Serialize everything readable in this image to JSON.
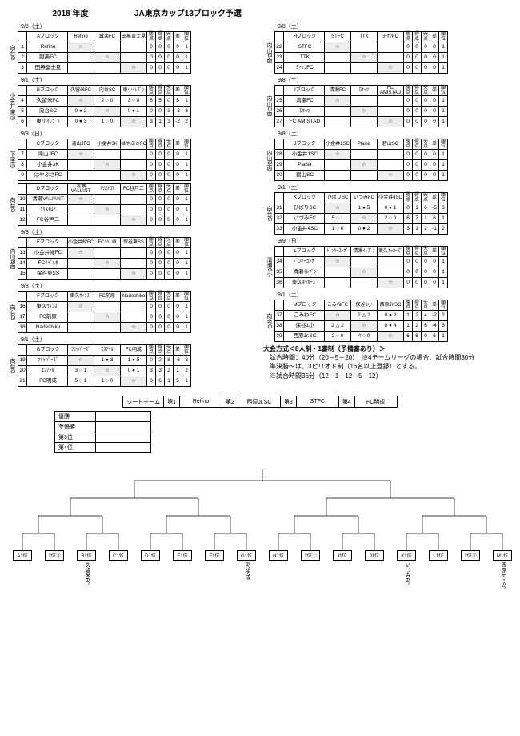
{
  "header": {
    "year": "2018 年度",
    "title": "JA東京カップ13ブロック予選"
  },
  "stat_hdr": [
    "勝点",
    "得点",
    "失点",
    "差",
    "順位"
  ],
  "left_groups": [
    {
      "date": "9/8（土）",
      "venue": "向台G",
      "name": "Aブロック",
      "opponents": [
        "Refino",
        "蹴楽FC",
        "田無富士見"
      ],
      "rows": [
        {
          "no": "1",
          "team": "Refino",
          "cells": [
            "☆",
            "",
            ""
          ],
          "stats": [
            "0",
            "0",
            "0",
            "0",
            "1"
          ]
        },
        {
          "no": "2",
          "team": "蹴楽FC",
          "cells": [
            "",
            "☆",
            ""
          ],
          "stats": [
            "0",
            "0",
            "0",
            "0",
            "1"
          ]
        },
        {
          "no": "3",
          "team": "田無富士見",
          "cells": [
            "",
            "",
            "☆"
          ],
          "stats": [
            "0",
            "0",
            "0",
            "0",
            "1"
          ]
        }
      ]
    },
    {
      "date": "9/1（土）",
      "venue": "小金井東小",
      "name": "Bブロック",
      "opponents": [
        "久留米FC",
        "向台SC",
        "東小ｲﾚﾌﾞﾝ"
      ],
      "rows": [
        {
          "no": "4",
          "team": "久留米FC",
          "cells": [
            "☆",
            "2 ○ 0",
            "3 ○ 0"
          ],
          "stats": [
            "6",
            "5",
            "0",
            "5",
            "1"
          ]
        },
        {
          "no": "5",
          "team": "向台SC",
          "cells": [
            "0 ● 2",
            "☆",
            "0 ● 1"
          ],
          "stats": [
            "0",
            "0",
            "3",
            "-3",
            "3"
          ]
        },
        {
          "no": "6",
          "team": "東小ｲﾚﾌﾞﾝ",
          "cells": [
            "0 ● 3",
            "1 ○ 0",
            "☆"
          ],
          "stats": [
            "3",
            "1",
            "3",
            "-2",
            "2"
          ]
        }
      ]
    },
    {
      "date": "9/9（日）",
      "venue": "下里小",
      "name": "Cブロック",
      "opponents": [
        "滝山JFC",
        "小金井3K",
        "はやぶさFC"
      ],
      "rows": [
        {
          "no": "7",
          "team": "滝山JFC",
          "cells": [
            "☆",
            "",
            ""
          ],
          "stats": [
            "0",
            "0",
            "0",
            "0",
            "1"
          ]
        },
        {
          "no": "8",
          "team": "小金井3K",
          "cells": [
            "",
            "☆",
            ""
          ],
          "stats": [
            "0",
            "0",
            "0",
            "0",
            "1"
          ]
        },
        {
          "no": "9",
          "team": "はやぶさFC",
          "cells": [
            "",
            "",
            "☆"
          ],
          "stats": [
            "0",
            "0",
            "0",
            "0",
            "1"
          ]
        }
      ]
    },
    {
      "date": "",
      "venue": "向台G",
      "name": "Dブロック",
      "opponents": [
        "清瀬VALIANT",
        "ｸﾘｽﾄﾛｱ",
        "FC谷戸二"
      ],
      "rows": [
        {
          "no": "10",
          "team": "清瀬VALIANT",
          "cells": [
            "☆",
            "",
            ""
          ],
          "stats": [
            "0",
            "0",
            "0",
            "0",
            "1"
          ]
        },
        {
          "no": "11",
          "team": "ｸﾘｽﾄﾛｱ",
          "cells": [
            "",
            "☆",
            ""
          ],
          "stats": [
            "0",
            "0",
            "0",
            "0",
            "1"
          ]
        },
        {
          "no": "12",
          "team": "FC谷戸二",
          "cells": [
            "",
            "",
            "☆"
          ],
          "stats": [
            "0",
            "0",
            "0",
            "0",
            "1"
          ]
        }
      ]
    },
    {
      "date": "9/8（土）",
      "venue": "内山B面",
      "name": "Eブロック",
      "opponents": [
        "小金井緑FC",
        "FCﾘﾍﾞﾙﾀ",
        "保谷東SS"
      ],
      "rows": [
        {
          "no": "13",
          "team": "小金井緑FC",
          "cells": [
            "☆",
            "",
            ""
          ],
          "stats": [
            "0",
            "0",
            "0",
            "0",
            "1"
          ]
        },
        {
          "no": "14",
          "team": "FCﾘﾍﾞﾙﾀ",
          "cells": [
            "",
            "☆",
            ""
          ],
          "stats": [
            "0",
            "0",
            "0",
            "0",
            "1"
          ]
        },
        {
          "no": "15",
          "team": "保谷東SS",
          "cells": [
            "",
            "",
            "☆"
          ],
          "stats": [
            "0",
            "0",
            "0",
            "0",
            "1"
          ]
        }
      ]
    },
    {
      "date": "9/8（土）",
      "venue": "向台G",
      "name": "Fブロック",
      "opponents": [
        "東久ｳｨﾝｽﾞ",
        "FC前原",
        "Nadeshiko"
      ],
      "rows": [
        {
          "no": "16",
          "team": "東久ｳｨﾝｽﾞ",
          "cells": [
            "☆",
            "",
            ""
          ],
          "stats": [
            "0",
            "0",
            "0",
            "0",
            "1"
          ]
        },
        {
          "no": "17",
          "team": "FC前原",
          "cells": [
            "",
            "☆",
            ""
          ],
          "stats": [
            "0",
            "0",
            "0",
            "0",
            "1"
          ]
        },
        {
          "no": "18",
          "team": "Nadeshiko",
          "cells": [
            "",
            "",
            "☆"
          ],
          "stats": [
            "0",
            "0",
            "0",
            "0",
            "1"
          ]
        }
      ]
    },
    {
      "date": "9/1（土）",
      "venue": "向台G",
      "name": "Gブロック",
      "opponents": [
        "ﾌﾘｯﾊﾟｰｽﾞ",
        "ｴｽｱｰﾙ",
        "FC明成"
      ],
      "rows": [
        {
          "no": "19",
          "team": "ﾌﾘｯﾊﾟｰｽﾞ",
          "cells": [
            "☆",
            "1 ● 3",
            "1 ● 5"
          ],
          "stats": [
            "0",
            "2",
            "8",
            "-6",
            "3"
          ]
        },
        {
          "no": "20",
          "team": "ｴｽｱｰﾙ",
          "cells": [
            "3 ○ 1",
            "☆",
            "0 ● 1"
          ],
          "stats": [
            "3",
            "3",
            "2",
            "1",
            "2"
          ]
        },
        {
          "no": "21",
          "team": "FC明成",
          "cells": [
            "5 ○ 1",
            "1 ○ 0",
            "☆"
          ],
          "stats": [
            "6",
            "6",
            "1",
            "5",
            "1"
          ]
        }
      ]
    }
  ],
  "right_groups": [
    {
      "date": "9/8（土）",
      "venue": "内山B面",
      "name": "Hブロック",
      "opponents": [
        "STFC",
        "TTK",
        "ﾖｰｹﾝFC"
      ],
      "rows": [
        {
          "no": "22",
          "team": "STFC",
          "cells": [
            "☆",
            "",
            ""
          ],
          "stats": [
            "0",
            "0",
            "0",
            "0",
            "1"
          ]
        },
        {
          "no": "23",
          "team": "TTK",
          "cells": [
            "",
            "☆",
            ""
          ],
          "stats": [
            "0",
            "0",
            "0",
            "0",
            "1"
          ]
        },
        {
          "no": "24",
          "team": "ﾖｰｹﾝFC",
          "cells": [
            "",
            "",
            "☆"
          ],
          "stats": [
            "0",
            "0",
            "0",
            "0",
            "1"
          ]
        }
      ]
    },
    {
      "date": "9/8（土）",
      "venue": "内山C面",
      "name": "Iブロック",
      "opponents": [
        "清瀬FC",
        "ﾛｹｯﾂ",
        "FC AMISTAD"
      ],
      "rows": [
        {
          "no": "25",
          "team": "清瀬FC",
          "cells": [
            "☆",
            "",
            ""
          ],
          "stats": [
            "0",
            "0",
            "0",
            "0",
            "1"
          ]
        },
        {
          "no": "26",
          "team": "ﾛｹｯﾂ",
          "cells": [
            "",
            "☆",
            ""
          ],
          "stats": [
            "0",
            "0",
            "0",
            "0",
            "1"
          ]
        },
        {
          "no": "27",
          "team": "FC AMISTAD",
          "cells": [
            "",
            "",
            "☆"
          ],
          "stats": [
            "0",
            "0",
            "0",
            "0",
            "1"
          ]
        }
      ]
    },
    {
      "date": "9/8（土）",
      "venue": "内山B面",
      "name": "Jブロック",
      "opponents": [
        "小金井1SC",
        "Plaisir",
        "碧山SC"
      ],
      "rows": [
        {
          "no": "28",
          "team": "小金井1SC",
          "cells": [
            "☆",
            "",
            ""
          ],
          "stats": [
            "0",
            "0",
            "0",
            "0",
            "1"
          ]
        },
        {
          "no": "29",
          "team": "Plaisir",
          "cells": [
            "",
            "☆",
            ""
          ],
          "stats": [
            "0",
            "0",
            "0",
            "0",
            "1"
          ]
        },
        {
          "no": "30",
          "team": "碧山SC",
          "cells": [
            "",
            "",
            "☆"
          ],
          "stats": [
            "0",
            "0",
            "0",
            "0",
            "1"
          ]
        }
      ]
    },
    {
      "date": "9/1（土）",
      "venue": "向台G",
      "name": "Kブロック",
      "opponents": [
        "ひばりSC",
        "いづみFC",
        "小金井4SC"
      ],
      "rows": [
        {
          "no": "31",
          "team": "ひばりSC",
          "cells": [
            "☆",
            "1 ● 5",
            "0 ● 1"
          ],
          "stats": [
            "0",
            "1",
            "6",
            "-5",
            "3"
          ]
        },
        {
          "no": "32",
          "team": "いづみFC",
          "cells": [
            "5 ○ 1",
            "☆",
            "2 ○ 0"
          ],
          "stats": [
            "6",
            "7",
            "1",
            "6",
            "1"
          ]
        },
        {
          "no": "33",
          "team": "小金井4SC",
          "cells": [
            "1 ○ 0",
            "0 ● 2",
            "☆"
          ],
          "stats": [
            "3",
            "1",
            "2",
            "-1",
            "2"
          ]
        }
      ]
    },
    {
      "date": "9/9（日）",
      "venue": "清瀬6小",
      "name": "Lブロック",
      "opponents": [
        "ﾄﾞﾝｷｰｺﾝｸﾞ",
        "清瀬ｲﾚﾌﾞﾝ",
        "東久ｷｯｶｰｽﾞ"
      ],
      "rows": [
        {
          "no": "34",
          "team": "ﾄﾞﾝｷｰｺﾝｸﾞ",
          "cells": [
            "☆",
            "",
            ""
          ],
          "stats": [
            "0",
            "0",
            "0",
            "0",
            "1"
          ]
        },
        {
          "no": "35",
          "team": "清瀬ｲﾚﾌﾞﾝ",
          "cells": [
            "",
            "☆",
            ""
          ],
          "stats": [
            "0",
            "0",
            "0",
            "0",
            "1"
          ]
        },
        {
          "no": "36",
          "team": "東久ｷｯｶｰｽﾞ",
          "cells": [
            "",
            "",
            "☆"
          ],
          "stats": [
            "0",
            "0",
            "0",
            "0",
            "1"
          ]
        }
      ]
    },
    {
      "date": "9/1（土）",
      "venue": "向台G",
      "name": "Mブロック",
      "opponents": [
        "こみねFC",
        "保谷1小",
        "西原Jr.SC"
      ],
      "rows": [
        {
          "no": "37",
          "team": "こみねFC",
          "cells": [
            "☆",
            "2 △ 2",
            "0 ● 2"
          ],
          "stats": [
            "1",
            "2",
            "4",
            "-2",
            "2"
          ]
        },
        {
          "no": "38",
          "team": "保谷1小",
          "cells": [
            "2 △ 2",
            "☆",
            "0 ● 4"
          ],
          "stats": [
            "1",
            "2",
            "6",
            "-4",
            "3"
          ]
        },
        {
          "no": "39",
          "team": "西原Jr.SC",
          "cells": [
            "2 ○ 0",
            "4 ○ 0",
            "☆"
          ],
          "stats": [
            "6",
            "6",
            "0",
            "6",
            "1"
          ]
        }
      ]
    }
  ],
  "notes": [
    "大会方式＜8人制・1審制（予備審あり）＞",
    "試合時間：40分（20－5－20）　※4チームリーグの場合、試合時間30分",
    "準決勝～は、3ピリオド制（16名以上登録）とする。",
    "※試合時間36分（12－1－12－5－12）"
  ],
  "seed": {
    "label": "シードチーム",
    "items": [
      {
        "k": "第1",
        "v": "Refino"
      },
      {
        "k": "第2",
        "v": "西原Jr.SC"
      },
      {
        "k": "第3",
        "v": "STFC"
      },
      {
        "k": "第4",
        "v": "FC明成"
      }
    ]
  },
  "rankings": [
    "優勝",
    "準優勝",
    "第3位",
    "第4位"
  ],
  "bracket": {
    "leaves": [
      {
        "lbl": "A1位",
        "tm": ""
      },
      {
        "lbl": "2位③",
        "tm": ""
      },
      {
        "lbl": "B1位",
        "tm": "久留米FC"
      },
      {
        "lbl": "C1位",
        "tm": ""
      },
      {
        "lbl": "D1位",
        "tm": ""
      },
      {
        "lbl": "E1位",
        "tm": ""
      },
      {
        "lbl": "F1位",
        "tm": ""
      },
      {
        "lbl": "G1位",
        "tm": "FC明成"
      },
      {
        "lbl": "H1位",
        "tm": ""
      },
      {
        "lbl": "2位①",
        "tm": ""
      },
      {
        "lbl": "I1位",
        "tm": ""
      },
      {
        "lbl": "J1位",
        "tm": ""
      },
      {
        "lbl": "K1位",
        "tm": "いづみFC"
      },
      {
        "lbl": "L1位",
        "tm": ""
      },
      {
        "lbl": "2位②",
        "tm": ""
      },
      {
        "lbl": "M1位",
        "tm": "西原Jr・SC"
      }
    ]
  }
}
